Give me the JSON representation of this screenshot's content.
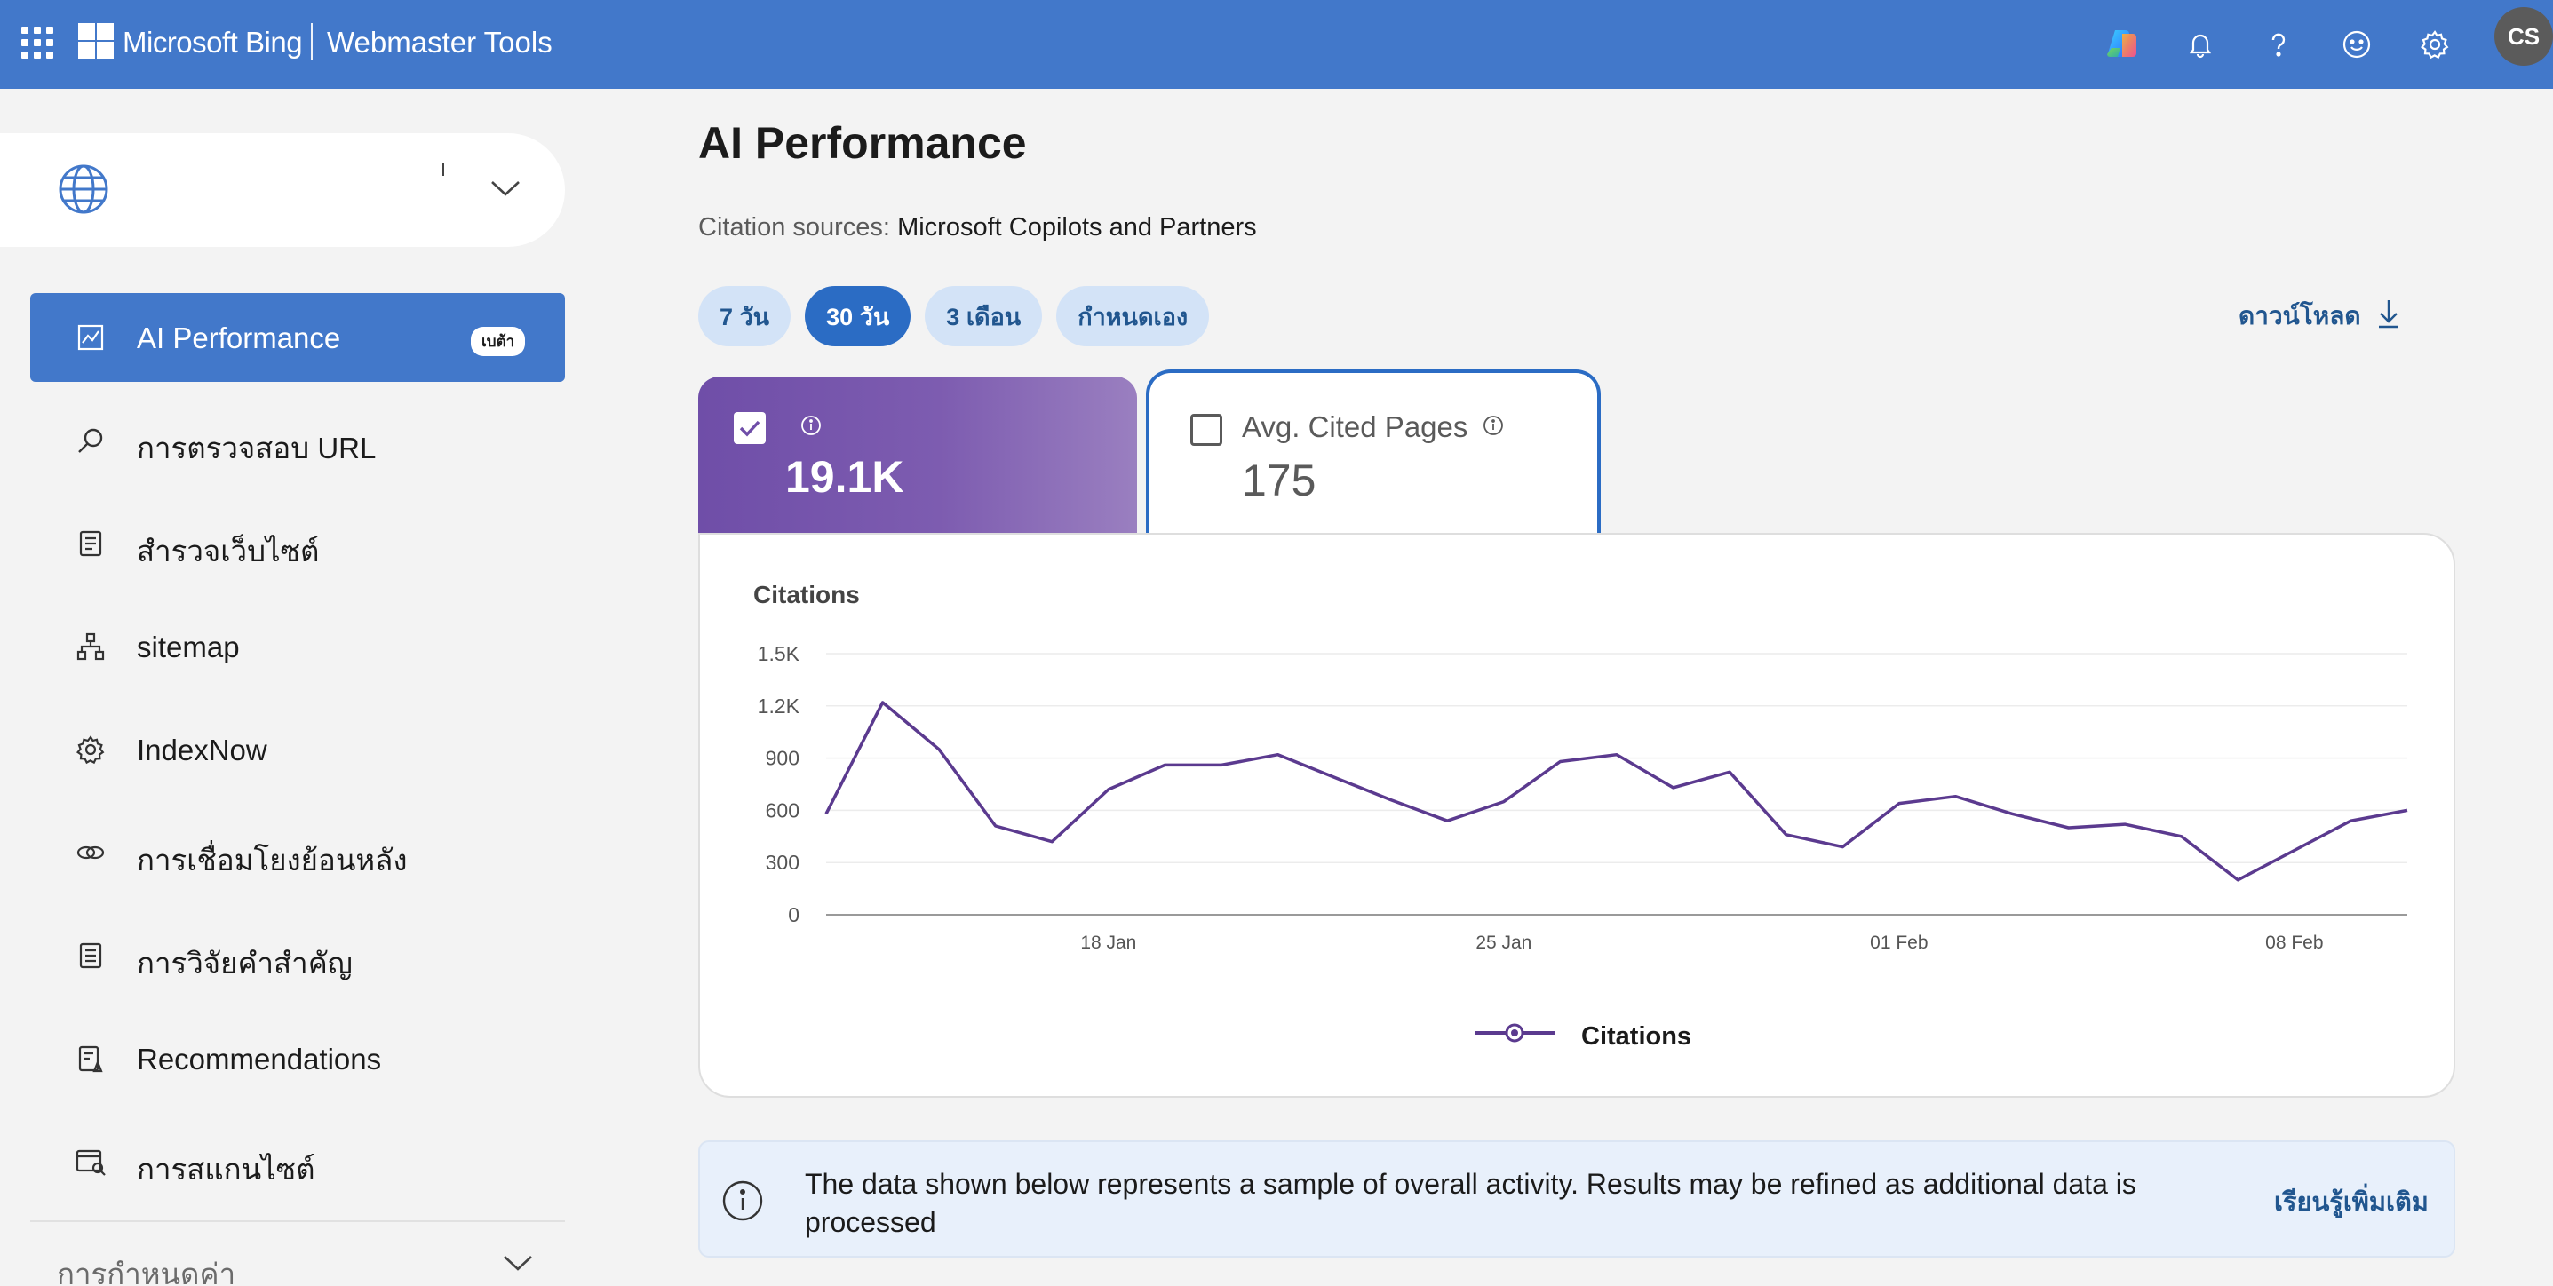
{
  "topbar": {
    "brand": "Microsoft Bing",
    "product": "Webmaster Tools",
    "avatar_initials": "CS",
    "bg_color": "#4278ca",
    "icons": [
      "apps-grid-icon",
      "copilot-icon",
      "bell-icon",
      "help-icon",
      "feedback-smiley-icon",
      "gear-icon"
    ]
  },
  "site_selector": {
    "value": "",
    "icon": "globe-icon"
  },
  "sidebar": {
    "items": [
      {
        "label": "AI Performance",
        "icon": "chart-icon",
        "badge": "เบต้า",
        "active": true
      },
      {
        "label": "การตรวจสอบ URL",
        "icon": "search-icon"
      },
      {
        "label": "สำรวจเว็บไซต์",
        "icon": "document-icon"
      },
      {
        "label": "sitemap",
        "icon": "sitemap-icon"
      },
      {
        "label": "IndexNow",
        "icon": "gear-icon"
      },
      {
        "label": "การเชื่อมโยงย้อนหลัง",
        "icon": "link-icon"
      },
      {
        "label": "การวิจัยคำสำคัญ",
        "icon": "list-icon"
      },
      {
        "label": "Recommendations",
        "icon": "recommendations-icon"
      },
      {
        "label": "การสแกนไซต์",
        "icon": "scan-icon"
      }
    ],
    "settings_label": "การกำหนดค่า"
  },
  "main": {
    "title": "AI Performance",
    "citation_label": "Citation sources:",
    "citation_value": "Microsoft Copilots and Partners",
    "ranges": [
      {
        "label": "7 วัน",
        "active": false
      },
      {
        "label": "30 วัน",
        "active": true
      },
      {
        "label": "3 เดือน",
        "active": false
      },
      {
        "label": "กำหนดเอง",
        "active": false
      }
    ],
    "download_label": "ดาวน์โหลด",
    "metric_citations": {
      "value": "19.1K",
      "checked": true
    },
    "metric_pages": {
      "title": "Avg. Cited Pages",
      "value": "175",
      "checked": false
    },
    "info_message": "The data shown below represents a sample of overall activity. Results may be refined as additional data is processed",
    "learn_more": "เรียนรู้เพิ่มเติม"
  },
  "chart_data": {
    "type": "line",
    "title": "Citations",
    "xlabel": "",
    "ylabel": "",
    "ylim": [
      0,
      1500
    ],
    "yticks": [
      "0",
      "300",
      "600",
      "900",
      "1.2K",
      "1.5K"
    ],
    "xticks": [
      {
        "label": "18 Jan",
        "index": 5
      },
      {
        "label": "25 Jan",
        "index": 12
      },
      {
        "label": "01 Feb",
        "index": 19
      },
      {
        "label": "08 Feb",
        "index": 26
      }
    ],
    "grid": true,
    "legend_position": "bottom-center",
    "color": "#5b3a8f",
    "series": [
      {
        "name": "Citations",
        "values": [
          580,
          1220,
          950,
          510,
          420,
          720,
          860,
          860,
          920,
          790,
          660,
          540,
          650,
          880,
          920,
          730,
          820,
          460,
          390,
          640,
          680,
          580,
          500,
          520,
          450,
          200,
          370,
          540,
          600
        ]
      }
    ]
  }
}
